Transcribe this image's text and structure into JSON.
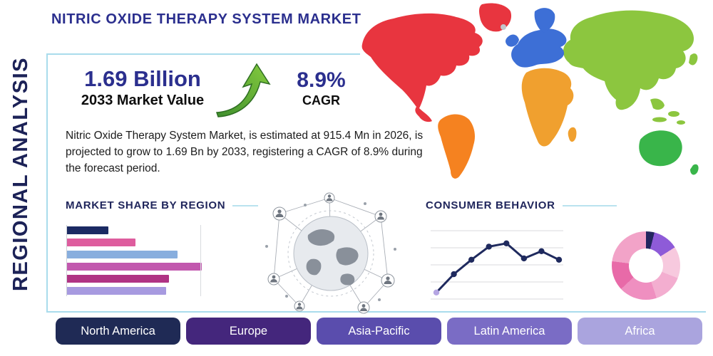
{
  "title": "NITRIC OXIDE THERAPY SYSTEM MARKET",
  "sidebar": {
    "label": "REGIONAL ANALYSIS"
  },
  "stats": {
    "market_value": "1.69 Billion",
    "market_value_caption": "2033 Market Value",
    "cagr_value": "8.9%",
    "cagr_caption": "CAGR"
  },
  "description": "Nitric Oxide Therapy System Market, is estimated at 915.4 Mn in 2026, is projected to grow to 1.69 Bn by 2033, registering a CAGR of 8.9% during the forecast period.",
  "market_share_heading": "MARKET SHARE BY REGION",
  "consumer_behavior_heading": "CONSUMER BEHAVIOR",
  "icons": {
    "growth_arrow": "up-right-green-arrow",
    "globe": "globe-network"
  },
  "accent_colors": {
    "divider_blue": "#a9dcec",
    "title_navy": "#2b2f8e",
    "dark_navy": "#1c2257"
  },
  "region_buttons": [
    {
      "label": "North America",
      "color": "#1f2a55"
    },
    {
      "label": "Europe",
      "color": "#44267c"
    },
    {
      "label": "Asia-Pacific",
      "color": "#5a4dad"
    },
    {
      "label": "Latin America",
      "color": "#7a6cc5"
    },
    {
      "label": "Africa",
      "color": "#aaa4de"
    }
  ],
  "map": {
    "colors": {
      "north_america": "#e8353f",
      "greenland": "#e8353f",
      "south_america": "#f58220",
      "europe": "#3d6fd6",
      "africa": "#f0a02f",
      "asia": "#8cc63f",
      "islands": "#8cc63f",
      "australia": "#39b54a",
      "minor_islands": "#c3c7cc"
    }
  },
  "chart_data": [
    {
      "type": "bar",
      "orientation": "horizontal",
      "title": "MARKET SHARE BY REGION",
      "values": [
        29,
        48,
        78,
        95,
        72,
        70
      ],
      "value_note": "relative bar lengths, % of chart width (no axis labels shown)",
      "colors": [
        "#1b2a63",
        "#de5d9e",
        "#88aede",
        "#c258ae",
        "#b03384",
        "#a79ae0"
      ],
      "axis_labels_visible": false,
      "grid": "single vertical gridline near right"
    },
    {
      "type": "line",
      "title": "CONSUMER BEHAVIOR",
      "x": [
        1,
        2,
        3,
        4,
        5,
        6,
        7,
        8
      ],
      "values": [
        10,
        38,
        60,
        80,
        85,
        62,
        73,
        60
      ],
      "value_note": "relative heights, % of plot height (no axis labels shown)",
      "color": "#1f2a5e",
      "first_point_color": "#b5a6e3",
      "grid": "horizontal"
    },
    {
      "type": "pie",
      "subtype": "donut",
      "slices": [
        {
          "color": "#23265f",
          "value": 4
        },
        {
          "color": "#8e5bd8",
          "value": 12
        },
        {
          "color": "#f7c9de",
          "value": 15
        },
        {
          "color": "#f3aed0",
          "value": 14
        },
        {
          "color": "#ef8fc0",
          "value": 18
        },
        {
          "color": "#e86aa8",
          "value": 14
        },
        {
          "color": "#f2a3c8",
          "value": 23
        }
      ]
    }
  ]
}
